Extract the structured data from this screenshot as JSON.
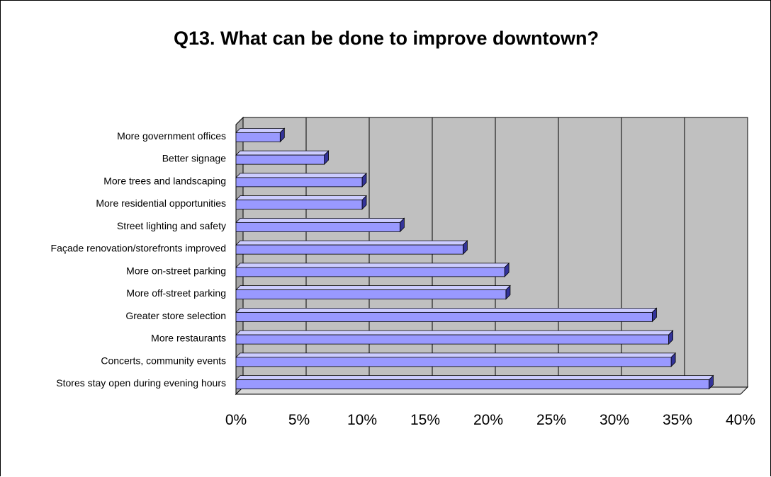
{
  "chart_data": {
    "type": "bar",
    "orientation": "horizontal",
    "title": "Q13.  What can be done to improve downtown?",
    "xlabel": "",
    "ylabel": "",
    "categories": [
      "More government offices",
      "Better signage",
      "More trees and landscaping",
      "More residential opportunities",
      "Street lighting and safety",
      "Façade renovation/storefronts improved",
      "More on-street parking",
      "More off-street parking",
      "Greater store selection",
      "More restaurants",
      "Concerts, community events",
      "Stores stay open during evening hours"
    ],
    "values": [
      3.5,
      7,
      10,
      10,
      13,
      18,
      21.3,
      21.4,
      33,
      34.3,
      34.5,
      37.5
    ],
    "xlim": [
      0,
      40
    ],
    "xticks": [
      0,
      5,
      10,
      15,
      20,
      25,
      30,
      35,
      40
    ],
    "xtick_labels": [
      "0%",
      "5%",
      "10%",
      "15%",
      "20%",
      "25%",
      "30%",
      "35%",
      "40%"
    ],
    "grid": true,
    "legend": "none",
    "colors": {
      "bar_face": "#9999ff",
      "bar_top": "#ccccff",
      "bar_side": "#333399",
      "plot_wall": "#c0c0c0",
      "floor": "#d9d9d9"
    }
  }
}
